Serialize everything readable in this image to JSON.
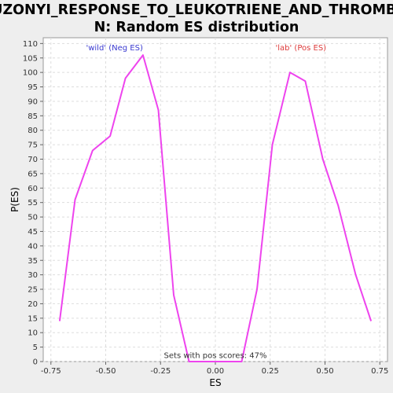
{
  "chart_data": {
    "type": "line",
    "title_line1": "UZONYI_RESPONSE_TO_LEUKOTRIENE_AND_THROMBI",
    "title_line2": "N: Random ES distribution",
    "xlabel": "ES",
    "ylabel": "P(ES)",
    "xlim": [
      -0.785,
      0.785
    ],
    "ylim": [
      0,
      112
    ],
    "x_ticks": [
      "-0.75",
      "-0.50",
      "-0.25",
      "0.00",
      "0.25",
      "0.50",
      "0.75"
    ],
    "x_tick_values": [
      -0.75,
      -0.5,
      -0.25,
      0.0,
      0.25,
      0.5,
      0.75
    ],
    "y_ticks": [
      "0",
      "5",
      "10",
      "15",
      "20",
      "25",
      "30",
      "35",
      "40",
      "45",
      "50",
      "55",
      "60",
      "65",
      "70",
      "75",
      "80",
      "85",
      "90",
      "95",
      "100",
      "105",
      "110"
    ],
    "y_tick_values": [
      0,
      5,
      10,
      15,
      20,
      25,
      30,
      35,
      40,
      45,
      50,
      55,
      60,
      65,
      70,
      75,
      80,
      85,
      90,
      95,
      100,
      105,
      110
    ],
    "grid": true,
    "series": [
      {
        "color": "#ee44ee",
        "x": [
          -0.71,
          -0.64,
          -0.56,
          -0.48,
          -0.41,
          -0.33,
          -0.26,
          -0.19,
          -0.12,
          -0.05,
          0.05,
          0.12,
          0.19,
          0.26,
          0.34,
          0.41,
          0.49,
          0.56,
          0.64,
          0.71
        ],
        "y": [
          14,
          56,
          73,
          78,
          98,
          106,
          87,
          23,
          0,
          0,
          0,
          0,
          25,
          75,
          100,
          97,
          70,
          54,
          30,
          14
        ]
      }
    ],
    "annotations": [
      {
        "text": "'wild' (Neg ES)",
        "x": -0.46,
        "y": 108.5,
        "color": "#3a3ad0"
      },
      {
        "text": "'lab' (Pos ES)",
        "x": 0.39,
        "y": 108.5,
        "color": "#dd3a3a"
      },
      {
        "text": "Sets with pos scores: 47%",
        "x": 0.0,
        "y": 2,
        "color": "#333333"
      }
    ]
  }
}
